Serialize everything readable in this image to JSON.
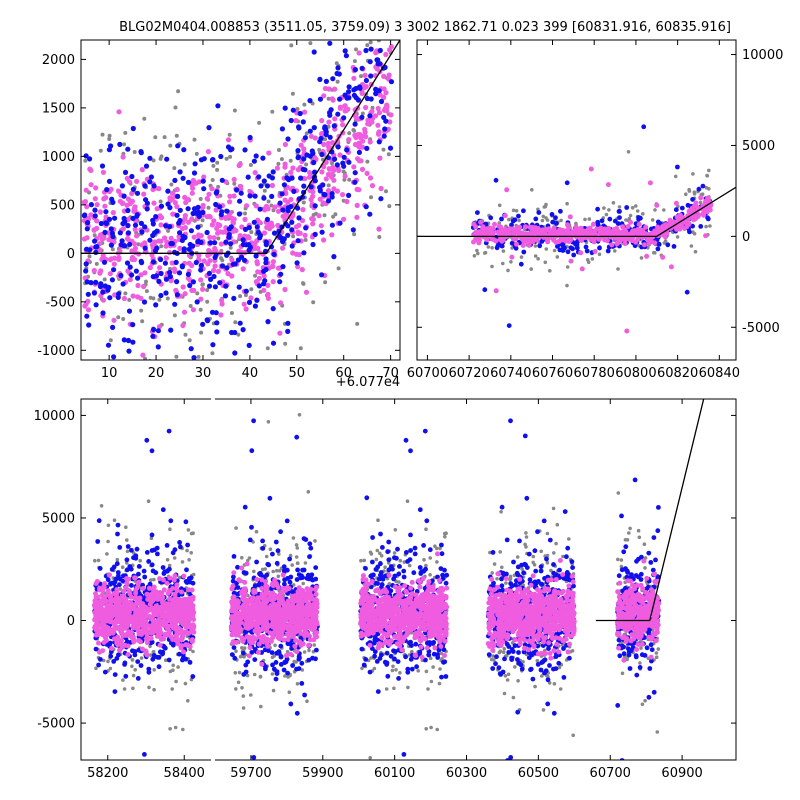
{
  "title": "BLG02M0404.008853 (3511.05, 3759.09)   3 3002 1862.71 0.023 399 [60831.916, 60835.916]",
  "colors": {
    "grey": "#888888",
    "blue": "#1010ee",
    "pink": "#f05ce0",
    "model": "#000000"
  },
  "chart_data": [
    {
      "type": "scatter",
      "panel": "zoom",
      "title": "",
      "x_offset_label": "+6.077e4",
      "xlim": [
        4,
        72
      ],
      "ylim": [
        -1100,
        2200
      ],
      "x_ticks": [
        10,
        20,
        30,
        40,
        50,
        60,
        70
      ],
      "y_ticks": [
        -1000,
        -500,
        0,
        500,
        1000,
        1500,
        2000
      ],
      "y_axis_side": "left",
      "series": [],
      "model_line": {
        "x": [
          4,
          43.5,
          72
        ],
        "y": [
          0,
          0,
          2200
        ]
      }
    },
    {
      "type": "scatter",
      "panel": "recent",
      "title": "",
      "xlim": [
        60695,
        60848
      ],
      "ylim": [
        -6800,
        10800
      ],
      "x_ticks": [
        60700,
        60720,
        60740,
        60760,
        60780,
        60800,
        60820,
        60840
      ],
      "y_ticks": [
        -5000,
        0,
        5000,
        10000
      ],
      "y_axis_side": "right",
      "series": [],
      "model_line": {
        "x": [
          60695,
          60810,
          60848
        ],
        "y": [
          0,
          0,
          2700
        ]
      }
    },
    {
      "type": "scatter",
      "panel": "full",
      "title": "",
      "broken_x_axis": true,
      "segments": [
        {
          "xlim": [
            58130,
            58470
          ],
          "x_ticks": [
            58200,
            58400
          ]
        },
        {
          "xlim": [
            59600,
            61050
          ],
          "x_ticks": [
            59700,
            59900,
            60100,
            60300,
            60500,
            60700,
            60900
          ]
        }
      ],
      "ylim": [
        -6800,
        10800
      ],
      "y_ticks": [
        -5000,
        0,
        5000,
        10000
      ],
      "y_axis_side": "left",
      "seasons": [
        {
          "start": 58165,
          "end": 58425
        },
        {
          "start": 59645,
          "end": 59885
        },
        {
          "start": 60005,
          "end": 60245
        },
        {
          "start": 60360,
          "end": 60600
        },
        {
          "start": 60720,
          "end": 60835
        }
      ],
      "series": [],
      "model_line": {
        "x": [
          60660,
          60810,
          60960
        ],
        "y": [
          0,
          0,
          10800
        ]
      }
    }
  ]
}
